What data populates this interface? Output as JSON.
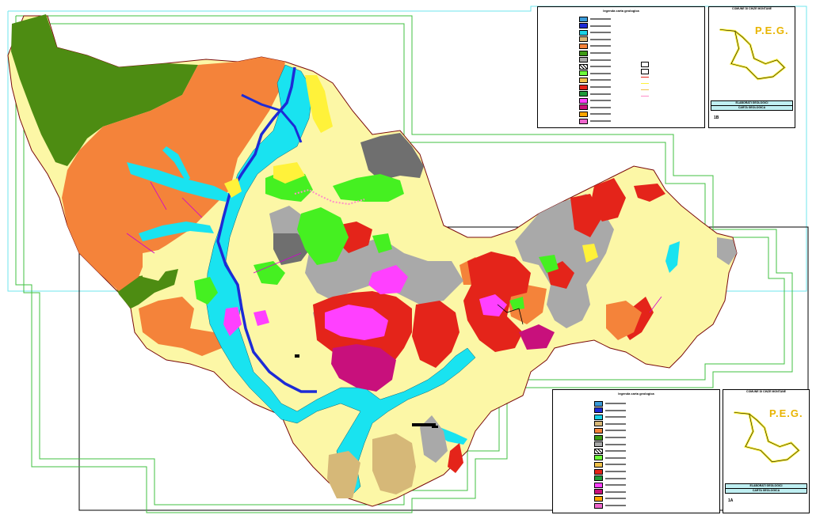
{
  "legend_top": {
    "title": "legenda carta geologica",
    "rows": [
      {
        "color": "#3a9bd9",
        "hatch": false
      },
      {
        "color": "#1d2bd6",
        "hatch": false
      },
      {
        "color": "#19d2e6",
        "hatch": false
      },
      {
        "color": "#d8b878",
        "hatch": false
      },
      {
        "color": "#f4833a",
        "hatch": false
      },
      {
        "color": "#3e9b16",
        "hatch": false
      },
      {
        "color": "#a9a9a9",
        "hatch": false
      },
      {
        "color": "#2b2b2b",
        "hatch": true
      },
      {
        "color": "#6dff3a",
        "hatch": false
      },
      {
        "color": "#f0c14a",
        "hatch": false
      },
      {
        "color": "#e4241a",
        "hatch": false
      },
      {
        "color": "#1f9a3a",
        "hatch": false
      },
      {
        "color": "#ff40ff",
        "hatch": false
      },
      {
        "color": "#c8107c",
        "hatch": false
      },
      {
        "color": "#ffa500",
        "hatch": false
      },
      {
        "color": "#ee66cc",
        "hatch": false
      }
    ]
  },
  "legend_bottom": {
    "title": "legenda carta geologica"
  },
  "title_block_top": {
    "header": "COMUNE DI CINZE MONTANE",
    "brand": "P.E.G.",
    "band1": "ELABORATI GEOLOGICI",
    "band2": "CARTA GEOLOGICA",
    "sheet": "1B"
  },
  "title_block_bottom": {
    "header": "COMUNE DI CINZE MONTANE",
    "brand": "P.E.G.",
    "band1": "ELABORATI GEOLOGICI",
    "band2": "CARTA GEOLOGICA",
    "sheet": "1A"
  },
  "colors": {
    "orange": "#f4833a",
    "dark_green": "#4d8c12",
    "cream": "#fcf7a6",
    "cyan": "#19e3f0",
    "blue": "#1d2bd6",
    "gray": "#a9a9a9",
    "dark_gray": "#6f6f6f",
    "red": "#e4241a",
    "magenta": "#ff40ff",
    "crimson": "#c8107c",
    "lime": "#45f021",
    "yellow": "#fff23a",
    "tan": "#d6b878",
    "frame_cyan": "#6fe6ee",
    "frame_green": "#40c040"
  }
}
